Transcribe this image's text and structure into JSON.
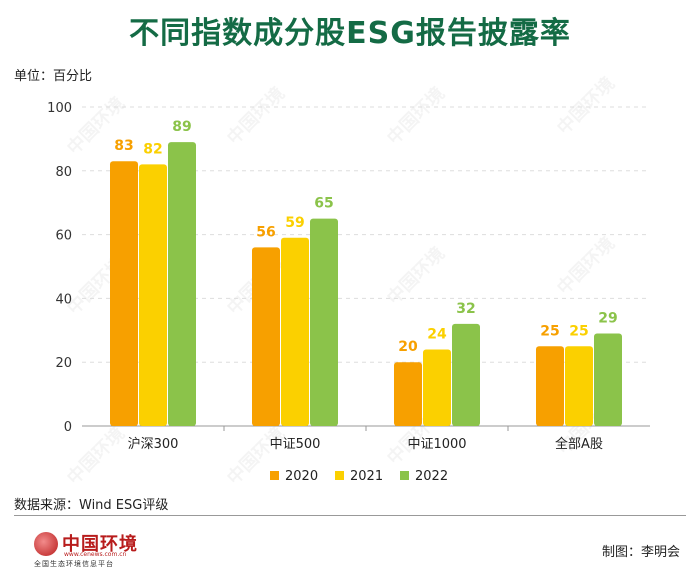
{
  "title": "不同指数成分股ESG报告披露率",
  "unit": "单位：百分比",
  "source": "数据来源：Wind ESG评级",
  "credit": "制图：李明会",
  "logo": {
    "name": "中国环境",
    "url": "www.cenews.com.cn",
    "subtitle": "全国生态环境信息平台"
  },
  "watermark": "中国环境",
  "colors": {
    "title": "#146b45",
    "series": [
      "#f7a000",
      "#fbd000",
      "#8bc34a"
    ],
    "grid": "#dddddd"
  },
  "chart_data": {
    "type": "bar",
    "categories": [
      "沪深300",
      "中证500",
      "中证1000",
      "全部A股"
    ],
    "series": [
      {
        "name": "2020",
        "values": [
          83,
          56,
          20,
          25
        ]
      },
      {
        "name": "2021",
        "values": [
          82,
          59,
          24,
          25
        ]
      },
      {
        "name": "2022",
        "values": [
          89,
          65,
          32,
          29
        ]
      }
    ],
    "ylim": [
      0,
      100
    ],
    "yticks": [
      0,
      20,
      40,
      60,
      80,
      100
    ],
    "grid": true,
    "legend": "bottom"
  }
}
